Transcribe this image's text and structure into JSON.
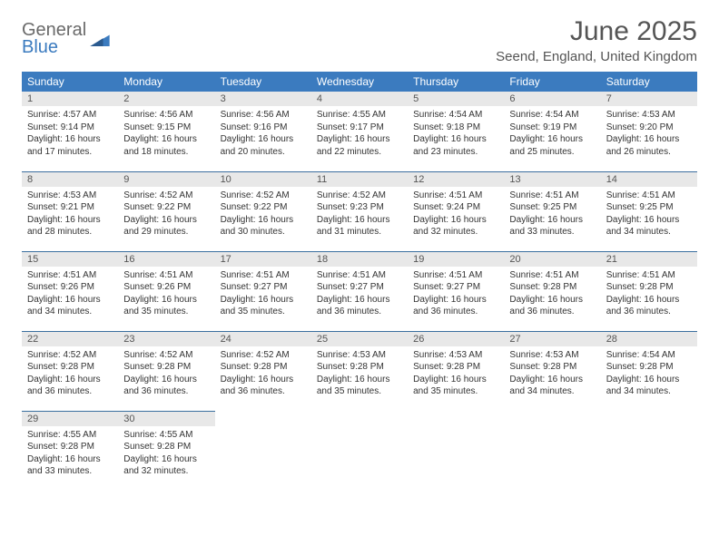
{
  "logo": {
    "line1": "General",
    "line2": "Blue"
  },
  "title": "June 2025",
  "location": "Seend, England, United Kingdom",
  "dayHeaders": [
    "Sunday",
    "Monday",
    "Tuesday",
    "Wednesday",
    "Thursday",
    "Friday",
    "Saturday"
  ],
  "colors": {
    "header_bg": "#3b7bbf",
    "header_text": "#ffffff",
    "daynum_bg": "#e8e8e8",
    "row_border": "#3b6f9f",
    "text": "#333333"
  },
  "weeks": [
    [
      {
        "n": "1",
        "sunrise": "4:57 AM",
        "sunset": "9:14 PM",
        "day_h": "16",
        "day_m": "17"
      },
      {
        "n": "2",
        "sunrise": "4:56 AM",
        "sunset": "9:15 PM",
        "day_h": "16",
        "day_m": "18"
      },
      {
        "n": "3",
        "sunrise": "4:56 AM",
        "sunset": "9:16 PM",
        "day_h": "16",
        "day_m": "20"
      },
      {
        "n": "4",
        "sunrise": "4:55 AM",
        "sunset": "9:17 PM",
        "day_h": "16",
        "day_m": "22"
      },
      {
        "n": "5",
        "sunrise": "4:54 AM",
        "sunset": "9:18 PM",
        "day_h": "16",
        "day_m": "23"
      },
      {
        "n": "6",
        "sunrise": "4:54 AM",
        "sunset": "9:19 PM",
        "day_h": "16",
        "day_m": "25"
      },
      {
        "n": "7",
        "sunrise": "4:53 AM",
        "sunset": "9:20 PM",
        "day_h": "16",
        "day_m": "26"
      }
    ],
    [
      {
        "n": "8",
        "sunrise": "4:53 AM",
        "sunset": "9:21 PM",
        "day_h": "16",
        "day_m": "28"
      },
      {
        "n": "9",
        "sunrise": "4:52 AM",
        "sunset": "9:22 PM",
        "day_h": "16",
        "day_m": "29"
      },
      {
        "n": "10",
        "sunrise": "4:52 AM",
        "sunset": "9:22 PM",
        "day_h": "16",
        "day_m": "30"
      },
      {
        "n": "11",
        "sunrise": "4:52 AM",
        "sunset": "9:23 PM",
        "day_h": "16",
        "day_m": "31"
      },
      {
        "n": "12",
        "sunrise": "4:51 AM",
        "sunset": "9:24 PM",
        "day_h": "16",
        "day_m": "32"
      },
      {
        "n": "13",
        "sunrise": "4:51 AM",
        "sunset": "9:25 PM",
        "day_h": "16",
        "day_m": "33"
      },
      {
        "n": "14",
        "sunrise": "4:51 AM",
        "sunset": "9:25 PM",
        "day_h": "16",
        "day_m": "34"
      }
    ],
    [
      {
        "n": "15",
        "sunrise": "4:51 AM",
        "sunset": "9:26 PM",
        "day_h": "16",
        "day_m": "34"
      },
      {
        "n": "16",
        "sunrise": "4:51 AM",
        "sunset": "9:26 PM",
        "day_h": "16",
        "day_m": "35"
      },
      {
        "n": "17",
        "sunrise": "4:51 AM",
        "sunset": "9:27 PM",
        "day_h": "16",
        "day_m": "35"
      },
      {
        "n": "18",
        "sunrise": "4:51 AM",
        "sunset": "9:27 PM",
        "day_h": "16",
        "day_m": "36"
      },
      {
        "n": "19",
        "sunrise": "4:51 AM",
        "sunset": "9:27 PM",
        "day_h": "16",
        "day_m": "36"
      },
      {
        "n": "20",
        "sunrise": "4:51 AM",
        "sunset": "9:28 PM",
        "day_h": "16",
        "day_m": "36"
      },
      {
        "n": "21",
        "sunrise": "4:51 AM",
        "sunset": "9:28 PM",
        "day_h": "16",
        "day_m": "36"
      }
    ],
    [
      {
        "n": "22",
        "sunrise": "4:52 AM",
        "sunset": "9:28 PM",
        "day_h": "16",
        "day_m": "36"
      },
      {
        "n": "23",
        "sunrise": "4:52 AM",
        "sunset": "9:28 PM",
        "day_h": "16",
        "day_m": "36"
      },
      {
        "n": "24",
        "sunrise": "4:52 AM",
        "sunset": "9:28 PM",
        "day_h": "16",
        "day_m": "36"
      },
      {
        "n": "25",
        "sunrise": "4:53 AM",
        "sunset": "9:28 PM",
        "day_h": "16",
        "day_m": "35"
      },
      {
        "n": "26",
        "sunrise": "4:53 AM",
        "sunset": "9:28 PM",
        "day_h": "16",
        "day_m": "35"
      },
      {
        "n": "27",
        "sunrise": "4:53 AM",
        "sunset": "9:28 PM",
        "day_h": "16",
        "day_m": "34"
      },
      {
        "n": "28",
        "sunrise": "4:54 AM",
        "sunset": "9:28 PM",
        "day_h": "16",
        "day_m": "34"
      }
    ],
    [
      {
        "n": "29",
        "sunrise": "4:55 AM",
        "sunset": "9:28 PM",
        "day_h": "16",
        "day_m": "33"
      },
      {
        "n": "30",
        "sunrise": "4:55 AM",
        "sunset": "9:28 PM",
        "day_h": "16",
        "day_m": "32"
      },
      null,
      null,
      null,
      null,
      null
    ]
  ],
  "labels": {
    "sunrise": "Sunrise:",
    "sunset": "Sunset:",
    "daylight_prefix": "Daylight:",
    "hours_word": "hours",
    "and_word": "and",
    "minutes_word": "minutes."
  }
}
